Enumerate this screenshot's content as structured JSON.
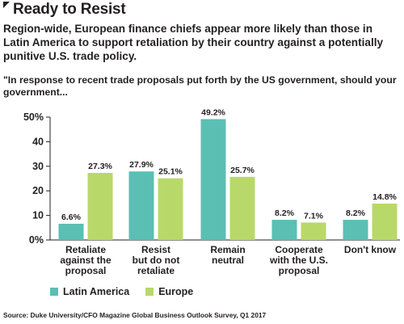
{
  "header": {
    "title": "Ready to Resist",
    "subtitle": "Region-wide, European finance chiefs appear more likely than those in Latin America to support retaliation by their country against a potentially punitive U.S. trade policy.",
    "question": "\"In response to recent trade proposals put forth by the US government, should your government..."
  },
  "colors": {
    "latin_america": "#5bbfb3",
    "europe": "#b9d86a",
    "axis": "#231f20"
  },
  "chart_data": {
    "type": "bar",
    "categories": [
      [
        "Retaliate",
        "against the",
        "proposal"
      ],
      [
        "Resist",
        "but do not",
        "retaliate"
      ],
      [
        "Remain",
        "neutral"
      ],
      [
        "Cooperate",
        "with the U.S.",
        "proposal"
      ],
      [
        "Don't know"
      ]
    ],
    "series": [
      {
        "name": "Latin America",
        "values": [
          6.6,
          27.9,
          49.2,
          8.2,
          8.2
        ],
        "labels": [
          "6.6%",
          "27.9%",
          "49.2%",
          "8.2%",
          "8.2%"
        ]
      },
      {
        "name": "Europe",
        "values": [
          27.3,
          25.1,
          25.7,
          7.1,
          14.8
        ],
        "labels": [
          "27.3%",
          "25.1%",
          "25.7%",
          "7.1%",
          "14.8%"
        ]
      }
    ],
    "yticks": [
      "0%",
      "10",
      "20",
      "30",
      "40",
      "50%"
    ],
    "ytick_values": [
      0,
      10,
      20,
      30,
      40,
      50
    ],
    "ylim": [
      0,
      50
    ],
    "grid": false,
    "legend": "bottom-left"
  },
  "source": "Source: Duke University/CFO Magazine Global Business Outlook Survey, Q1 2017"
}
